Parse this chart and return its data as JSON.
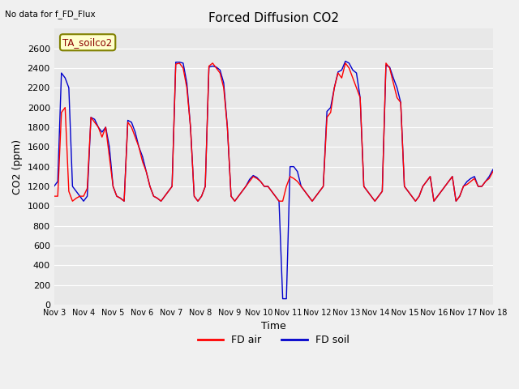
{
  "title": "Forced Diffusion CO2",
  "xlabel": "Time",
  "ylabel": "CO2 (ppm)",
  "top_left_text": "No data for f_FD_Flux",
  "annotation_box": "TA_soilco2",
  "ylim": [
    0,
    2800
  ],
  "yticks": [
    0,
    200,
    400,
    600,
    800,
    1000,
    1200,
    1400,
    1600,
    1800,
    2000,
    2200,
    2400,
    2600
  ],
  "xtick_labels": [
    "Nov 3",
    "Nov 4",
    "Nov 5",
    "Nov 6",
    "Nov 7",
    "Nov 8",
    "Nov 9",
    "Nov 10",
    "Nov 11",
    "Nov 12",
    "Nov 13",
    "Nov 14",
    "Nov 15",
    "Nov 16",
    "Nov 17",
    "Nov 18"
  ],
  "color_air": "#ff0000",
  "color_soil": "#0000cc",
  "legend_entries": [
    "FD air",
    "FD soil"
  ],
  "fd_air": [
    1100,
    1100,
    1950,
    2000,
    1150,
    1050,
    1080,
    1100,
    1100,
    1180,
    1900,
    1850,
    1800,
    1700,
    1800,
    1500,
    1200,
    1100,
    1080,
    1050,
    1850,
    1800,
    1700,
    1600,
    1450,
    1350,
    1200,
    1100,
    1080,
    1050,
    1100,
    1150,
    1200,
    2440,
    2450,
    2400,
    2200,
    1800,
    1100,
    1050,
    1100,
    1200,
    2420,
    2450,
    2400,
    2350,
    2200,
    1800,
    1100,
    1050,
    1100,
    1150,
    1200,
    1250,
    1300,
    1280,
    1250,
    1200,
    1200,
    1150,
    1100,
    1050,
    1050,
    1200,
    1300,
    1280,
    1250,
    1200,
    1150,
    1100,
    1050,
    1100,
    1150,
    1200,
    1900,
    1950,
    2200,
    2350,
    2300,
    2450,
    2400,
    2300,
    2200,
    2100,
    1200,
    1150,
    1100,
    1050,
    1100,
    1150,
    2450,
    2400,
    2250,
    2100,
    2050,
    1200,
    1150,
    1100,
    1050,
    1100,
    1200,
    1250,
    1300,
    1050,
    1100,
    1150,
    1200,
    1250,
    1300,
    1050,
    1100,
    1200,
    1220,
    1250,
    1280,
    1200,
    1200,
    1250,
    1280,
    1350
  ],
  "fd_soil": [
    1200,
    1250,
    2350,
    2300,
    2200,
    1200,
    1150,
    1100,
    1050,
    1100,
    1900,
    1880,
    1800,
    1750,
    1800,
    1600,
    1200,
    1100,
    1080,
    1050,
    1870,
    1850,
    1750,
    1600,
    1500,
    1350,
    1200,
    1100,
    1080,
    1050,
    1100,
    1150,
    1200,
    2460,
    2460,
    2450,
    2250,
    1800,
    1100,
    1050,
    1100,
    1200,
    2410,
    2420,
    2410,
    2380,
    2250,
    1800,
    1100,
    1050,
    1100,
    1150,
    1200,
    1270,
    1310,
    1290,
    1250,
    1200,
    1200,
    1150,
    1100,
    1050,
    60,
    60,
    1400,
    1400,
    1350,
    1200,
    1150,
    1100,
    1050,
    1100,
    1150,
    1200,
    1960,
    2000,
    2200,
    2360,
    2380,
    2470,
    2450,
    2380,
    2350,
    2100,
    1200,
    1150,
    1100,
    1050,
    1100,
    1150,
    2430,
    2410,
    2300,
    2200,
    2050,
    1200,
    1150,
    1100,
    1050,
    1100,
    1200,
    1250,
    1300,
    1050,
    1100,
    1150,
    1200,
    1250,
    1300,
    1050,
    1100,
    1200,
    1250,
    1280,
    1300,
    1200,
    1200,
    1250,
    1300,
    1370
  ]
}
